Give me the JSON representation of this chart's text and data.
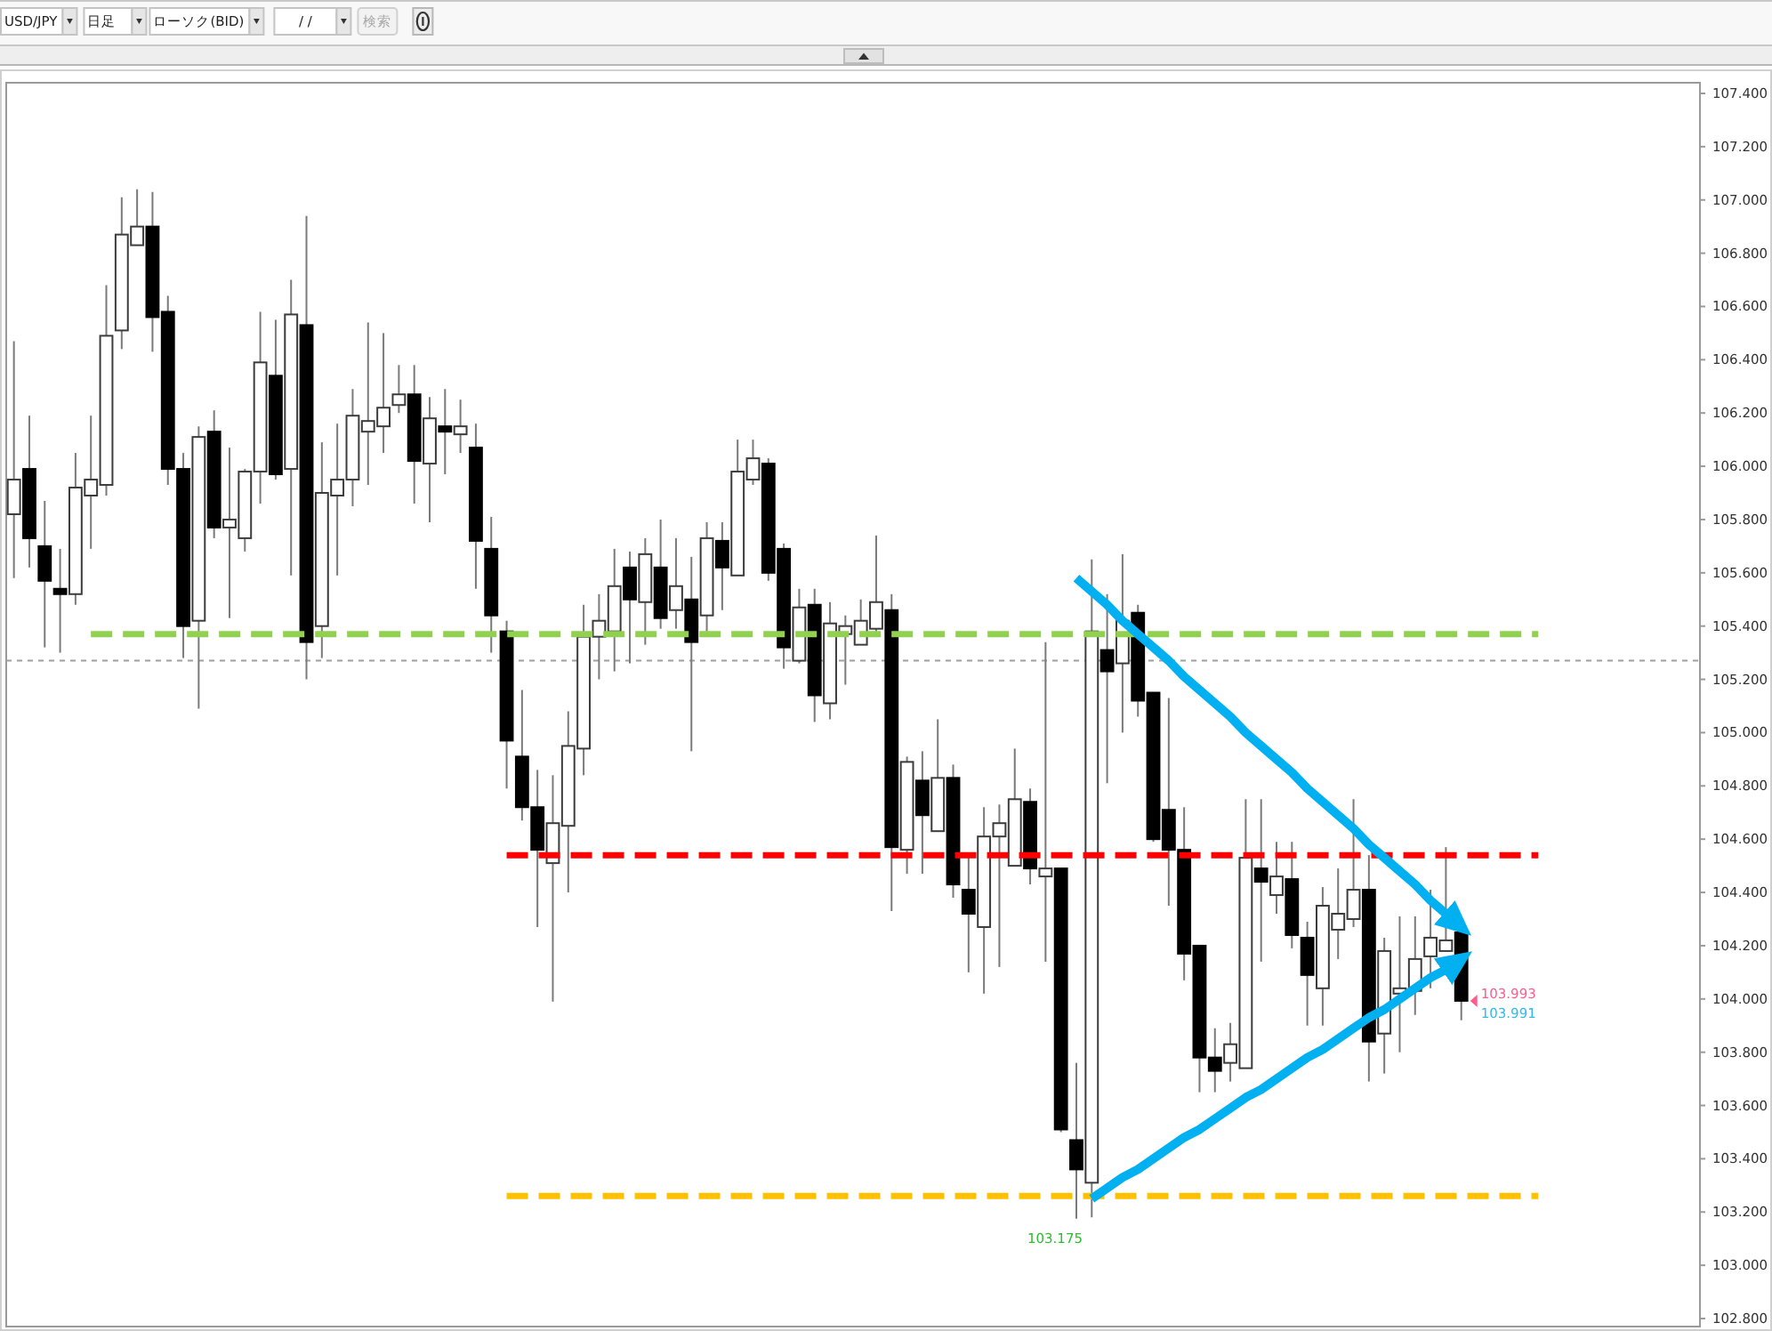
{
  "chart_data": {
    "type": "candlestick",
    "categories": [
      null,
      null,
      null,
      null,
      null,
      null,
      null,
      null,
      null,
      null,
      null,
      null,
      null,
      null,
      null,
      null,
      null,
      null,
      null,
      null,
      null,
      null,
      null,
      null,
      null,
      null,
      null,
      null,
      null,
      null,
      null,
      null,
      null,
      null,
      null,
      null,
      null,
      null,
      null,
      null,
      null,
      null,
      null,
      null,
      null,
      null,
      null,
      null,
      null,
      null,
      null,
      null,
      null,
      null,
      null,
      null,
      null,
      null,
      null,
      null,
      null,
      null,
      null,
      null,
      null,
      null,
      null,
      null,
      null,
      null,
      null,
      null,
      null,
      null,
      null,
      null,
      null,
      null,
      null,
      null,
      null,
      null,
      null,
      null,
      null,
      null,
      null,
      null,
      null,
      null,
      null,
      null,
      null,
      null,
      null,
      null,
      null,
      null,
      null,
      null,
      null,
      null,
      null,
      null,
      null,
      null,
      null,
      null,
      null,
      null
    ],
    "ohlc": [
      [
        105.82,
        106.47,
        105.58,
        105.95
      ],
      [
        105.99,
        106.19,
        105.62,
        105.73
      ],
      [
        105.7,
        105.87,
        105.32,
        105.57
      ],
      [
        105.54,
        105.69,
        105.3,
        105.52
      ],
      [
        105.52,
        106.05,
        105.48,
        105.92
      ],
      [
        105.89,
        106.19,
        105.69,
        105.95
      ],
      [
        105.93,
        106.68,
        105.89,
        106.49
      ],
      [
        106.51,
        107.01,
        106.44,
        106.87
      ],
      [
        106.83,
        107.04,
        106.83,
        106.9
      ],
      [
        106.9,
        107.03,
        106.43,
        106.56
      ],
      [
        106.58,
        106.64,
        105.93,
        105.99
      ],
      [
        105.99,
        106.05,
        105.28,
        105.4
      ],
      [
        105.42,
        106.15,
        105.09,
        106.11
      ],
      [
        106.13,
        106.21,
        105.73,
        105.77
      ],
      [
        105.77,
        106.07,
        105.43,
        105.8
      ],
      [
        105.73,
        105.99,
        105.68,
        105.98
      ],
      [
        105.98,
        106.58,
        105.86,
        106.39
      ],
      [
        106.34,
        106.55,
        105.95,
        105.97
      ],
      [
        105.99,
        106.7,
        105.59,
        106.57
      ],
      [
        106.53,
        106.94,
        105.2,
        105.34
      ],
      [
        105.4,
        106.09,
        105.28,
        105.9
      ],
      [
        105.89,
        106.16,
        105.59,
        105.95
      ],
      [
        105.95,
        106.29,
        105.85,
        106.19
      ],
      [
        106.13,
        106.54,
        105.93,
        106.17
      ],
      [
        106.15,
        106.5,
        106.05,
        106.22
      ],
      [
        106.23,
        106.38,
        106.2,
        106.27
      ],
      [
        106.27,
        106.38,
        105.86,
        106.02
      ],
      [
        106.01,
        106.26,
        105.79,
        106.18
      ],
      [
        106.15,
        106.29,
        105.97,
        106.13
      ],
      [
        106.12,
        106.25,
        106.05,
        106.15
      ],
      [
        106.07,
        106.16,
        105.54,
        105.72
      ],
      [
        105.69,
        105.81,
        105.3,
        105.44
      ],
      [
        105.38,
        105.42,
        104.79,
        104.97
      ],
      [
        104.91,
        105.16,
        104.67,
        104.72
      ],
      [
        104.72,
        104.86,
        104.27,
        104.56
      ],
      [
        104.51,
        104.84,
        103.99,
        104.66
      ],
      [
        104.65,
        105.08,
        104.4,
        104.95
      ],
      [
        104.94,
        105.48,
        104.84,
        105.36
      ],
      [
        105.36,
        105.52,
        105.2,
        105.42
      ],
      [
        105.38,
        105.69,
        105.23,
        105.55
      ],
      [
        105.62,
        105.68,
        105.26,
        105.5
      ],
      [
        105.49,
        105.73,
        105.33,
        105.67
      ],
      [
        105.62,
        105.8,
        105.39,
        105.43
      ],
      [
        105.46,
        105.73,
        105.39,
        105.55
      ],
      [
        105.5,
        105.66,
        104.93,
        105.34
      ],
      [
        105.44,
        105.79,
        105.38,
        105.73
      ],
      [
        105.72,
        105.79,
        105.46,
        105.62
      ],
      [
        105.59,
        106.1,
        105.59,
        105.98
      ],
      [
        105.95,
        106.1,
        105.93,
        106.03
      ],
      [
        106.01,
        106.03,
        105.57,
        105.6
      ],
      [
        105.69,
        105.71,
        105.24,
        105.32
      ],
      [
        105.27,
        105.54,
        105.26,
        105.47
      ],
      [
        105.48,
        105.54,
        105.04,
        105.14
      ],
      [
        105.11,
        105.49,
        105.05,
        105.41
      ],
      [
        105.37,
        105.44,
        105.18,
        105.4
      ],
      [
        105.33,
        105.5,
        105.33,
        105.42
      ],
      [
        105.39,
        105.74,
        105.38,
        105.49
      ],
      [
        105.46,
        105.52,
        104.33,
        104.57
      ],
      [
        104.56,
        104.91,
        104.47,
        104.89
      ],
      [
        104.82,
        104.93,
        104.47,
        104.69
      ],
      [
        104.63,
        105.05,
        104.63,
        104.83
      ],
      [
        104.83,
        104.88,
        104.38,
        104.43
      ],
      [
        104.41,
        104.55,
        104.1,
        104.32
      ],
      [
        104.27,
        104.72,
        104.02,
        104.61
      ],
      [
        104.61,
        104.73,
        104.12,
        104.66
      ],
      [
        104.5,
        104.94,
        104.5,
        104.75
      ],
      [
        104.74,
        104.79,
        104.43,
        104.49
      ],
      [
        104.46,
        105.34,
        104.14,
        104.49
      ],
      [
        104.49,
        104.49,
        103.5,
        103.51
      ],
      [
        103.47,
        103.76,
        103.175,
        103.36
      ],
      [
        103.31,
        105.65,
        103.18,
        105.38
      ],
      [
        105.31,
        105.52,
        104.81,
        105.23
      ],
      [
        105.26,
        105.67,
        105.0,
        105.42
      ],
      [
        105.45,
        105.48,
        105.06,
        105.12
      ],
      [
        105.15,
        105.15,
        104.59,
        104.6
      ],
      [
        104.71,
        105.13,
        104.35,
        104.56
      ],
      [
        104.56,
        104.72,
        104.07,
        104.17
      ],
      [
        104.2,
        104.2,
        103.65,
        103.78
      ],
      [
        103.78,
        103.89,
        103.65,
        103.73
      ],
      [
        103.76,
        103.91,
        103.69,
        103.83
      ],
      [
        103.74,
        104.75,
        103.74,
        104.53
      ],
      [
        104.49,
        104.75,
        104.14,
        104.44
      ],
      [
        104.39,
        104.59,
        104.32,
        104.46
      ],
      [
        104.45,
        104.59,
        104.19,
        104.24
      ],
      [
        104.23,
        104.29,
        103.9,
        104.09
      ],
      [
        104.04,
        104.42,
        103.9,
        104.35
      ],
      [
        104.26,
        104.49,
        104.15,
        104.32
      ],
      [
        104.3,
        104.75,
        104.27,
        104.41
      ],
      [
        104.41,
        104.54,
        103.69,
        103.84
      ],
      [
        103.87,
        104.23,
        103.72,
        104.18
      ],
      [
        104.02,
        104.31,
        103.8,
        104.04
      ],
      [
        104.03,
        104.31,
        103.94,
        104.15
      ],
      [
        104.16,
        104.41,
        104.04,
        104.23
      ],
      [
        104.18,
        104.57,
        104.18,
        104.22
      ],
      [
        104.25,
        104.27,
        103.92,
        103.993
      ],
      null,
      null,
      null,
      null,
      null,
      null,
      null,
      null,
      null,
      null,
      null,
      null,
      null,
      null,
      null
    ],
    "colors": [
      "#ffffff",
      "#000000",
      "#000000",
      "#000000",
      "#ffffff",
      "#ffffff",
      "#ffffff",
      "#ffffff",
      "#ffffff",
      "#000000",
      "#000000",
      "#000000",
      "#ffffff",
      "#000000",
      "#ffffff",
      "#ffffff",
      "#ffffff",
      "#000000",
      "#ffffff",
      "#000000",
      "#ffffff",
      "#ffffff",
      "#ffffff",
      "#ffffff",
      "#ffffff",
      "#ffffff",
      "#000000",
      "#ffffff",
      "#000000",
      "#ffffff",
      "#000000",
      "#000000",
      "#000000",
      "#000000",
      "#000000",
      "#ffffff",
      "#ffffff",
      "#ffffff",
      "#ffffff",
      "#ffffff",
      "#000000",
      "#ffffff",
      "#000000",
      "#ffffff",
      "#000000",
      "#ffffff",
      "#000000",
      "#ffffff",
      "#ffffff",
      "#000000",
      "#000000",
      "#ffffff",
      "#000000",
      "#ffffff",
      "#ffffff",
      "#ffffff",
      "#ffffff",
      "#000000",
      "#ffffff",
      "#000000",
      "#ffffff",
      "#000000",
      "#000000",
      "#ffffff",
      "#ffffff",
      "#ffffff",
      "#000000",
      "#ffffff",
      "#000000",
      "#000000",
      "#ffffff",
      "#000000",
      "#ffffff",
      "#000000",
      "#000000",
      "#000000",
      "#000000",
      "#000000",
      "#000000",
      "#ffffff",
      "#ffffff",
      "#000000",
      "#ffffff",
      "#000000",
      "#000000",
      "#ffffff",
      "#ffffff",
      "#ffffff",
      "#000000",
      "#ffffff",
      "#ffffff",
      "#ffffff",
      "#ffffff",
      "#ffffff",
      "#000000",
      null,
      null,
      null,
      null,
      null,
      null,
      null,
      null,
      null,
      null,
      null,
      null,
      null,
      null,
      null
    ],
    "series": [
      {
        "type": "line",
        "color": "#92d050",
        "line_style": "dashed",
        "values": [
          null,
          null,
          null,
          null,
          null,
          105.37,
          105.37,
          105.37,
          105.37,
          105.37,
          105.37,
          105.37,
          105.37,
          105.37,
          105.37,
          105.37,
          105.37,
          105.37,
          105.37,
          105.37,
          105.37,
          105.37,
          105.37,
          105.37,
          105.37,
          105.37,
          105.37,
          105.37,
          105.37,
          105.37,
          105.37,
          105.37,
          105.37,
          105.37,
          105.37,
          105.37,
          105.37,
          105.37,
          105.37,
          105.37,
          105.37,
          105.37,
          105.37,
          105.37,
          105.37,
          105.37,
          105.37,
          105.37,
          105.37,
          105.37,
          105.37,
          105.37,
          105.37,
          105.37,
          105.37,
          105.37,
          105.37,
          105.37,
          105.37,
          105.37,
          105.37,
          105.37,
          105.37,
          105.37,
          105.37,
          105.37,
          105.37,
          105.37,
          105.37,
          105.37,
          105.37,
          105.37,
          105.37,
          105.37,
          105.37,
          105.37,
          105.37,
          105.37,
          105.37,
          105.37,
          105.37,
          105.37,
          105.37,
          105.37,
          105.37,
          105.37,
          105.37,
          105.37,
          105.37,
          105.37,
          105.37,
          105.37,
          105.37,
          105.37,
          105.37,
          105.37,
          105.37,
          105.37,
          105.37,
          105.37,
          null,
          null,
          null,
          null,
          null,
          null,
          null,
          null,
          null,
          null
        ]
      },
      {
        "type": "line",
        "color": "#ff0000",
        "line_style": "dashed",
        "values": [
          null,
          null,
          null,
          null,
          null,
          null,
          null,
          null,
          null,
          null,
          null,
          null,
          null,
          null,
          null,
          null,
          null,
          null,
          null,
          null,
          null,
          null,
          null,
          null,
          null,
          null,
          null,
          null,
          null,
          null,
          null,
          null,
          104.54,
          104.54,
          104.54,
          104.54,
          104.54,
          104.54,
          104.54,
          104.54,
          104.54,
          104.54,
          104.54,
          104.54,
          104.54,
          104.54,
          104.54,
          104.54,
          104.54,
          104.54,
          104.54,
          104.54,
          104.54,
          104.54,
          104.54,
          104.54,
          104.54,
          104.54,
          104.54,
          104.54,
          104.54,
          104.54,
          104.54,
          104.54,
          104.54,
          104.54,
          104.54,
          104.54,
          104.54,
          104.54,
          104.54,
          104.54,
          104.54,
          104.54,
          104.54,
          104.54,
          104.54,
          104.54,
          104.54,
          104.54,
          104.54,
          104.54,
          104.54,
          104.54,
          104.54,
          104.54,
          104.54,
          104.54,
          104.54,
          104.54,
          104.54,
          104.54,
          104.54,
          104.54,
          104.54,
          104.54,
          104.54,
          104.54,
          104.54,
          104.54,
          null,
          null,
          null,
          null,
          null,
          null,
          null,
          null,
          null,
          null
        ]
      },
      {
        "type": "line",
        "color": "#ffc000",
        "line_style": "dashed",
        "values": [
          null,
          null,
          null,
          null,
          null,
          null,
          null,
          null,
          null,
          null,
          null,
          null,
          null,
          null,
          null,
          null,
          null,
          null,
          null,
          null,
          null,
          null,
          null,
          null,
          null,
          null,
          null,
          null,
          null,
          null,
          null,
          null,
          103.26,
          103.26,
          103.26,
          103.26,
          103.26,
          103.26,
          103.26,
          103.26,
          103.26,
          103.26,
          103.26,
          103.26,
          103.26,
          103.26,
          103.26,
          103.26,
          103.26,
          103.26,
          103.26,
          103.26,
          103.26,
          103.26,
          103.26,
          103.26,
          103.26,
          103.26,
          103.26,
          103.26,
          103.26,
          103.26,
          103.26,
          103.26,
          103.26,
          103.26,
          103.26,
          103.26,
          103.26,
          103.26,
          103.26,
          103.26,
          103.26,
          103.26,
          103.26,
          103.26,
          103.26,
          103.26,
          103.26,
          103.26,
          103.26,
          103.26,
          103.26,
          103.26,
          103.26,
          103.26,
          103.26,
          103.26,
          103.26,
          103.26,
          103.26,
          103.26,
          103.26,
          103.26,
          103.26,
          103.26,
          103.26,
          103.26,
          103.26,
          103.26,
          null,
          null,
          null,
          null,
          null,
          null,
          null,
          null,
          null,
          null
        ]
      },
      {
        "type": "line",
        "color": "#00b0f0",
        "line_style": "solid",
        "values": [
          null,
          null,
          null,
          null,
          null,
          null,
          null,
          null,
          null,
          null,
          null,
          null,
          null,
          null,
          null,
          null,
          null,
          null,
          null,
          null,
          null,
          null,
          null,
          null,
          null,
          null,
          null,
          null,
          null,
          null,
          null,
          null,
          null,
          null,
          null,
          null,
          null,
          null,
          null,
          null,
          null,
          null,
          null,
          null,
          null,
          null,
          null,
          null,
          null,
          null,
          null,
          null,
          null,
          null,
          null,
          null,
          null,
          null,
          null,
          null,
          null,
          null,
          null,
          null,
          null,
          null,
          null,
          null,
          null,
          105.58,
          105.53,
          105.48,
          105.42,
          105.37,
          105.32,
          105.27,
          105.21,
          105.16,
          105.11,
          105.06,
          105.0,
          104.95,
          104.9,
          104.85,
          104.79,
          104.74,
          104.69,
          104.64,
          104.58,
          104.53,
          104.48,
          104.43,
          104.37,
          104.32,
          104.27,
          null,
          null,
          null,
          null,
          null,
          null,
          null,
          null,
          null,
          null,
          null,
          null,
          null,
          null,
          null
        ]
      },
      {
        "type": "line",
        "color": "#00b0f0",
        "line_style": "solid",
        "values": [
          null,
          null,
          null,
          null,
          null,
          null,
          null,
          null,
          null,
          null,
          null,
          null,
          null,
          null,
          null,
          null,
          null,
          null,
          null,
          null,
          null,
          null,
          null,
          null,
          null,
          null,
          null,
          null,
          null,
          null,
          null,
          null,
          null,
          null,
          null,
          null,
          null,
          null,
          null,
          null,
          null,
          null,
          null,
          null,
          null,
          null,
          null,
          null,
          null,
          null,
          null,
          null,
          null,
          null,
          null,
          null,
          null,
          null,
          null,
          null,
          null,
          null,
          null,
          null,
          null,
          null,
          null,
          null,
          null,
          null,
          103.25,
          103.29,
          103.33,
          103.36,
          103.4,
          103.44,
          103.48,
          103.51,
          103.55,
          103.59,
          103.63,
          103.66,
          103.7,
          103.74,
          103.78,
          103.81,
          103.85,
          103.89,
          103.93,
          103.96,
          104.0,
          104.04,
          104.08,
          104.11,
          104.15,
          null,
          null,
          null,
          null,
          null,
          null,
          null,
          null,
          null,
          null,
          null,
          null,
          null,
          null,
          null
        ]
      }
    ],
    "ylim": [
      102.77,
      107.44
    ],
    "yticks": [
      {
        "value": 102.8,
        "label": "102.800"
      },
      {
        "value": 103.0,
        "label": "103.000"
      },
      {
        "value": 103.2,
        "label": "103.200"
      },
      {
        "value": 103.4,
        "label": "103.400"
      },
      {
        "value": 103.6,
        "label": "103.600"
      },
      {
        "value": 103.8,
        "label": "103.800"
      },
      {
        "value": 104.0,
        "label": "104.000"
      },
      {
        "value": 104.2,
        "label": "104.200"
      },
      {
        "value": 104.4,
        "label": "104.400"
      },
      {
        "value": 104.6,
        "label": "104.600"
      },
      {
        "value": 104.8,
        "label": "104.800"
      },
      {
        "value": 105.0,
        "label": "105.000"
      },
      {
        "value": 105.2,
        "label": "105.200"
      },
      {
        "value": 105.4,
        "label": "105.400"
      },
      {
        "value": 105.6,
        "label": "105.600"
      },
      {
        "value": 105.8,
        "label": "105.800"
      },
      {
        "value": 106.0,
        "label": "106.000"
      },
      {
        "value": 106.2,
        "label": "106.200"
      },
      {
        "value": 106.4,
        "label": "106.400"
      },
      {
        "value": 106.6,
        "label": "106.600"
      },
      {
        "value": 106.8,
        "label": "106.800"
      },
      {
        "value": 107.0,
        "label": "107.000"
      },
      {
        "value": 107.2,
        "label": "107.200"
      },
      {
        "value": 107.4,
        "label": "107.400"
      }
    ],
    "ref_lines": [
      {
        "axis": "y",
        "value": 105.27,
        "color": "#a0a0a0",
        "line_style": "dotted"
      }
    ],
    "tick_labels": "y",
    "annotations": [
      "USD/JPY",
      "日足",
      "ローソク(BID)",
      "/ /",
      "検索",
      "103.175",
      "103.993",
      "103.991"
    ]
  }
}
